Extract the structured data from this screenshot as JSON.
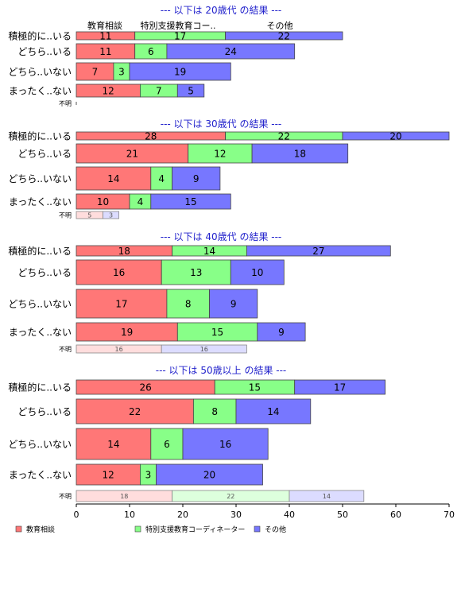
{
  "chart_data": {
    "type": "bar",
    "orientation": "horizontal",
    "stacked": true,
    "xlim": [
      0,
      70
    ],
    "x_ticks": [
      "0",
      "10",
      "20",
      "30",
      "40",
      "50",
      "60",
      "70"
    ],
    "grid": false,
    "legend_position": "bottom",
    "colors": {
      "教育相談": "#ff7777",
      "特別支援教育コーディネーター": "#88ff88",
      "その他": "#7777ff",
      "不明_教育相談": "#ffdddd",
      "不明_特別支援教育コーディネーター": "#ddffdd",
      "不明_その他": "#dcdcff",
      "title": "#2222cc"
    },
    "legend": [
      {
        "name": "教育相談",
        "color": "#ff7777"
      },
      {
        "name": "特別支援教育コーディネーター",
        "color": "#88ff88"
      },
      {
        "name": "その他",
        "color": "#7777ff"
      }
    ],
    "series_names": [
      "教育相談",
      "特別支援教育コーディネーター",
      "その他"
    ],
    "top_headers": [
      "教育相談",
      "特別支援教育コー..",
      "その他"
    ],
    "groups": [
      {
        "title": "--- 以下は 20歳代 の結果 ---",
        "categories": [
          "積極的に..いる",
          "どちら..いる",
          "どちら..いない",
          "まったく..ない",
          "不明"
        ],
        "values": [
          [
            11,
            17,
            22
          ],
          [
            11,
            6,
            24
          ],
          [
            7,
            3,
            19
          ],
          [
            12,
            7,
            5
          ],
          [
            0,
            0,
            0
          ]
        ]
      },
      {
        "title": "--- 以下は 30歳代 の結果 ---",
        "categories": [
          "積極的に..いる",
          "どちら..いる",
          "どちら..いない",
          "まったく..ない",
          "不明"
        ],
        "values": [
          [
            28,
            22,
            20
          ],
          [
            21,
            12,
            18
          ],
          [
            14,
            4,
            9
          ],
          [
            10,
            4,
            15
          ],
          [
            5,
            0,
            3
          ]
        ]
      },
      {
        "title": "--- 以下は 40歳代 の結果 ---",
        "categories": [
          "積極的に..いる",
          "どちら..いる",
          "どちら..いない",
          "まったく..ない",
          "不明"
        ],
        "values": [
          [
            18,
            14,
            27
          ],
          [
            16,
            13,
            10
          ],
          [
            17,
            8,
            9
          ],
          [
            19,
            15,
            9
          ],
          [
            16,
            0,
            16
          ]
        ]
      },
      {
        "title": "--- 以下は 50歳以上 の結果 ---",
        "categories": [
          "積極的に..いる",
          "どちら..いる",
          "どちら..いない",
          "まったく..ない",
          "不明"
        ],
        "values": [
          [
            26,
            15,
            17
          ],
          [
            22,
            8,
            14
          ],
          [
            14,
            6,
            16
          ],
          [
            12,
            3,
            20
          ],
          [
            18,
            22,
            14
          ]
        ]
      }
    ]
  }
}
